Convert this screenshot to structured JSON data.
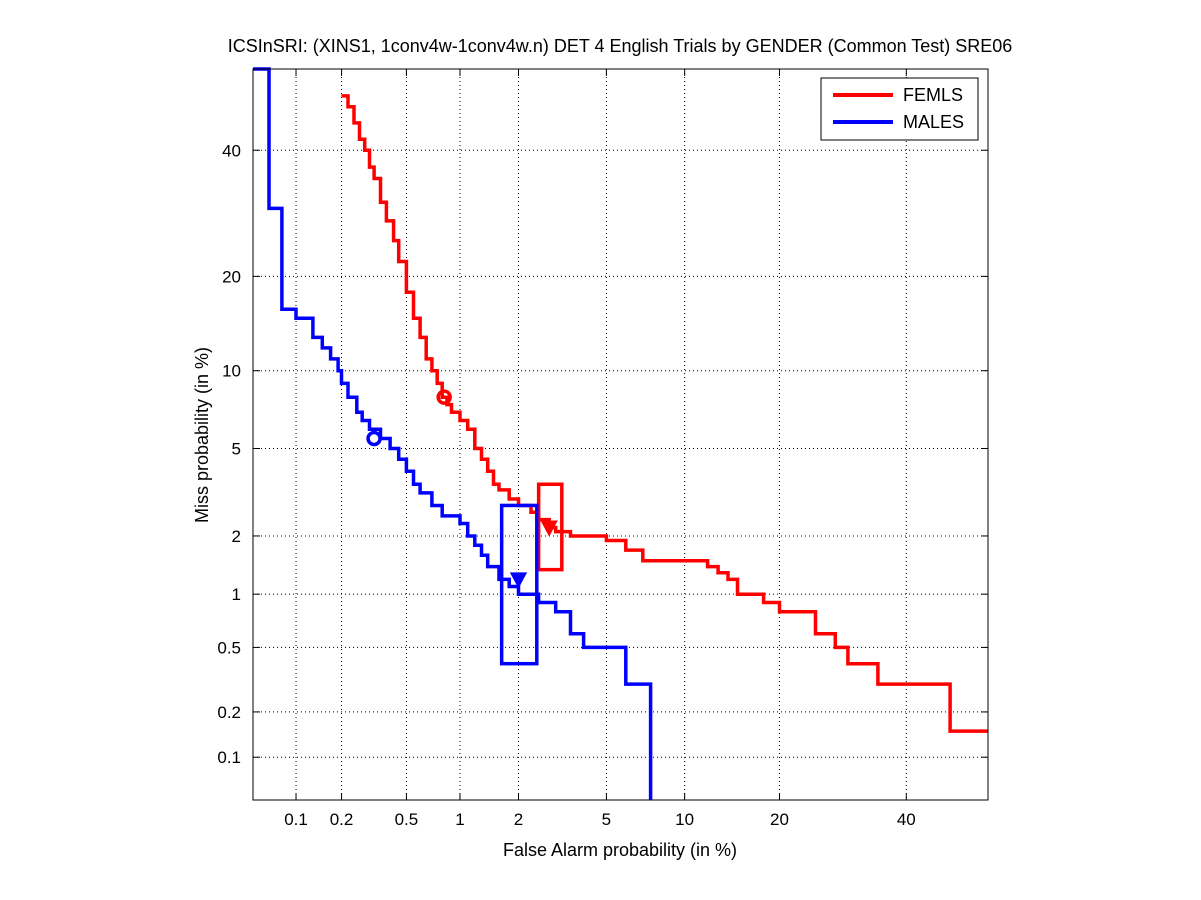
{
  "chart_data": {
    "type": "line",
    "title": "ICSInSRI: (XINS1, 1conv4w-1conv4w.n) DET 4 English Trials by GENDER (Common Test) SRE06",
    "xlabel": "False Alarm probability (in %)",
    "ylabel": "Miss probability (in %)",
    "xscale": "probit",
    "yscale": "probit",
    "xlim": [
      0.05,
      55
    ],
    "ylim": [
      0.05,
      55
    ],
    "x_ticks": [
      "0.1",
      "0.2",
      "0.5",
      "1",
      "2",
      "5",
      "10",
      "20",
      "40"
    ],
    "y_ticks": [
      "0.1",
      "0.2",
      "0.5",
      "1",
      "2",
      "5",
      "10",
      "20",
      "40"
    ],
    "grid": true,
    "legend_position": "top-right",
    "series": [
      {
        "name": "FEMLS",
        "color": "#ff0000",
        "x": [
          0.2,
          0.22,
          0.24,
          0.26,
          0.28,
          0.3,
          0.32,
          0.35,
          0.38,
          0.42,
          0.45,
          0.5,
          0.55,
          0.6,
          0.65,
          0.7,
          0.75,
          0.8,
          0.85,
          0.9,
          1.0,
          1.1,
          1.2,
          1.3,
          1.4,
          1.5,
          1.6,
          1.8,
          2.0,
          2.3,
          2.5,
          2.8,
          3.0,
          3.5,
          4.0,
          5.0,
          6.0,
          7.0,
          8.0,
          10.0,
          12.0,
          13.0,
          14.0,
          15.0,
          18.0,
          20.0,
          25.0,
          28.0,
          30.0,
          35.0,
          40.0,
          45.0,
          48.0,
          55.0
        ],
        "y": [
          50,
          48,
          45,
          42,
          40,
          37,
          35,
          31,
          28,
          25,
          22,
          18,
          15,
          13,
          11,
          10,
          9,
          8,
          7.5,
          7,
          6.5,
          6,
          5,
          4.5,
          4,
          3.5,
          3.3,
          3,
          2.8,
          2.6,
          2.4,
          2.2,
          2.1,
          2.0,
          2.0,
          1.9,
          1.7,
          1.5,
          1.5,
          1.5,
          1.4,
          1.3,
          1.2,
          1.0,
          0.9,
          0.8,
          0.6,
          0.5,
          0.4,
          0.3,
          0.3,
          0.3,
          0.15,
          0.15
        ]
      },
      {
        "name": "MALES",
        "color": "#0000ff",
        "x": [
          0.05,
          0.065,
          0.08,
          0.1,
          0.13,
          0.15,
          0.17,
          0.19,
          0.2,
          0.22,
          0.25,
          0.27,
          0.3,
          0.35,
          0.4,
          0.45,
          0.5,
          0.55,
          0.6,
          0.7,
          0.8,
          1.0,
          1.1,
          1.2,
          1.3,
          1.4,
          1.6,
          1.8,
          2.0,
          2.5,
          3.0,
          3.5,
          4.0,
          5.0,
          6.0,
          7.5,
          7.5
        ],
        "y": [
          100,
          30,
          16,
          15,
          13,
          12,
          11,
          10,
          9,
          8,
          7,
          6.5,
          6,
          5.5,
          5,
          4.5,
          4,
          3.5,
          3.2,
          2.8,
          2.5,
          2.3,
          2.0,
          1.8,
          1.6,
          1.4,
          1.2,
          1.1,
          1.0,
          0.9,
          0.8,
          0.6,
          0.5,
          0.5,
          0.3,
          0.3,
          0.05
        ]
      }
    ],
    "markers": [
      {
        "series": "FEMLS",
        "shape": "circle",
        "x": 0.82,
        "y": 8.0
      },
      {
        "series": "MALES",
        "shape": "circle",
        "x": 0.32,
        "y": 5.5
      },
      {
        "series": "FEMLS",
        "shape": "triangle-down",
        "x": 2.8,
        "y": 2.2
      },
      {
        "series": "MALES",
        "shape": "triangle-down",
        "x": 2.0,
        "y": 1.2
      }
    ],
    "boxes": [
      {
        "series": "FEMLS",
        "x": [
          2.5,
          3.2
        ],
        "y": [
          1.35,
          3.5
        ]
      },
      {
        "series": "MALES",
        "x": [
          1.65,
          2.45
        ],
        "y": [
          0.4,
          2.8
        ]
      }
    ]
  }
}
